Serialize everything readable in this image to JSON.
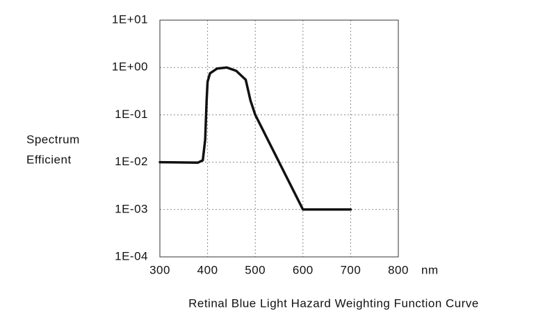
{
  "chart_data": {
    "type": "line",
    "title": "Retinal Blue Light Hazard Weighting Function Curve",
    "ylabel": [
      "Spectrum",
      "Efficient"
    ],
    "xlabel": "nm",
    "x": [
      300,
      380,
      390,
      395,
      398,
      400,
      405,
      420,
      440,
      460,
      480,
      490,
      500,
      600,
      700
    ],
    "values": [
      0.01,
      0.0098,
      0.011,
      0.03,
      0.2,
      0.5,
      0.75,
      0.95,
      1.0,
      0.85,
      0.55,
      0.2,
      0.1,
      0.001,
      0.001
    ],
    "color": "#111111",
    "xlim": [
      300,
      800
    ],
    "xticks": [
      300,
      400,
      500,
      600,
      700,
      800
    ],
    "ylim": [
      0.0001,
      10
    ],
    "yticks": [
      {
        "value": 0.0001,
        "label": "1E-04"
      },
      {
        "value": 0.001,
        "label": "1E-03"
      },
      {
        "value": 0.01,
        "label": "1E-02"
      },
      {
        "value": 0.1,
        "label": "1E-01"
      },
      {
        "value": 1,
        "label": "1E+00"
      },
      {
        "value": 10,
        "label": "1E+01"
      }
    ],
    "yscale": "log",
    "grid": true
  }
}
